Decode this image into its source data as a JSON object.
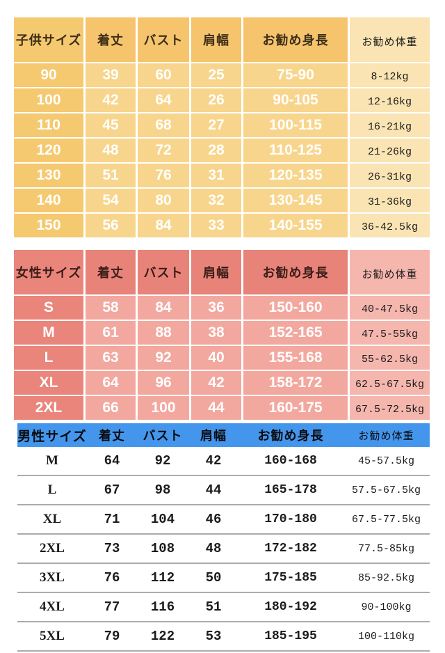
{
  "tables": [
    {
      "kind": "kids",
      "headers": [
        "子供サイズ",
        "着丈",
        "バスト",
        "肩幅",
        "お勧め身長",
        "お勧め体重"
      ],
      "rows": [
        [
          "90",
          "39",
          "60",
          "25",
          "75-90",
          "8-12kg"
        ],
        [
          "100",
          "42",
          "64",
          "26",
          "90-105",
          "12-16kg"
        ],
        [
          "110",
          "45",
          "68",
          "27",
          "100-115",
          "16-21kg"
        ],
        [
          "120",
          "48",
          "72",
          "28",
          "110-125",
          "21-26kg"
        ],
        [
          "130",
          "51",
          "76",
          "31",
          "120-135",
          "26-31kg"
        ],
        [
          "140",
          "54",
          "80",
          "32",
          "130-145",
          "31-36kg"
        ],
        [
          "150",
          "56",
          "84",
          "33",
          "140-155",
          "36-42.5kg"
        ]
      ],
      "theme": {
        "header_bg": "#f5c46d",
        "header_fg": "#3c2e18",
        "col1_bg": "#f5c96f",
        "cell_bg": "#f8d58c",
        "cell_bg_first": "#fadfa8",
        "cell_fg": "#ffffff",
        "wt_bg": "#fae4b3",
        "wt_bg_first": "#fcebc6",
        "wt_fg": "#1d1d1d"
      }
    },
    {
      "kind": "women",
      "headers": [
        "女性サイズ",
        "着丈",
        "バスト",
        "肩幅",
        "お勧め身長",
        "お勧め体重"
      ],
      "rows": [
        [
          "S",
          "58",
          "84",
          "36",
          "150-160",
          "40-47.5kg"
        ],
        [
          "M",
          "61",
          "88",
          "38",
          "152-165",
          "47.5-55kg"
        ],
        [
          "L",
          "63",
          "92",
          "40",
          "155-168",
          "55-62.5kg"
        ],
        [
          "XL",
          "64",
          "96",
          "42",
          "158-172",
          "62.5-67.5kg"
        ],
        [
          "2XL",
          "66",
          "100",
          "44",
          "160-175",
          "67.5-72.5kg"
        ]
      ],
      "theme": {
        "header_bg": "#e8837a",
        "header_fg": "#3a1d18",
        "col1_bg": "#ea857c",
        "cell_bg": "#f3a89f",
        "cell_bg_first": "#f6b9b0",
        "cell_fg": "#ffffff",
        "wt_bg": "#f5b6ae",
        "wt_bg_first": "#f7c0b8",
        "wt_fg": "#1d1d1d"
      }
    },
    {
      "kind": "men",
      "headers": [
        "男性サイズ",
        "着丈",
        "バスト",
        "肩幅",
        "お勧め身長",
        "お勧め体重"
      ],
      "rows": [
        [
          "M",
          "64",
          "92",
          "42",
          "160-168",
          "45-57.5kg"
        ],
        [
          "L",
          "67",
          "98",
          "44",
          "165-178",
          "57.5-67.5kg"
        ],
        [
          "XL",
          "71",
          "104",
          "46",
          "170-180",
          "67.5-77.5kg"
        ],
        [
          "2XL",
          "73",
          "108",
          "48",
          "172-182",
          "77.5-85kg"
        ],
        [
          "3XL",
          "76",
          "112",
          "50",
          "175-185",
          "85-92.5kg"
        ],
        [
          "4XL",
          "77",
          "116",
          "51",
          "180-192",
          "90-100kg"
        ],
        [
          "5XL",
          "79",
          "122",
          "53",
          "185-195",
          "100-110kg"
        ]
      ],
      "theme": {
        "header_bg": "#4496ec",
        "header_fg": "#0b0b10",
        "separator": "#ababab"
      }
    }
  ],
  "cell_kinds": [
    "size",
    "length",
    "bust",
    "shoulder",
    "height-range",
    "weight-range"
  ]
}
